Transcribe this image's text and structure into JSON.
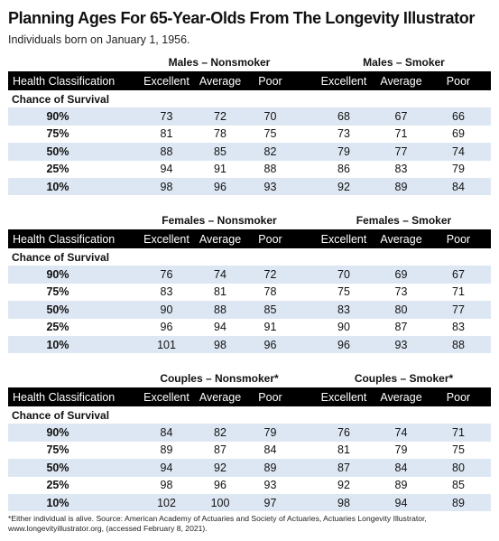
{
  "title": "Planning Ages For 65-Year-Olds From The Longevity Illustrator",
  "subtitle": "Individuals born on January 1, 1956.",
  "chart_data": {
    "type": "table",
    "header_label": "Health Classification",
    "row_group_label": "Chance of Survival",
    "columns": [
      "Excellent",
      "Average",
      "Poor"
    ],
    "sections": [
      {
        "left_title": "Males – Nonsmoker",
        "right_title": "Males – Smoker",
        "rows": [
          {
            "label": "90%",
            "left": [
              "73",
              "72",
              "70"
            ],
            "right": [
              "68",
              "67",
              "66"
            ]
          },
          {
            "label": "75%",
            "left": [
              "81",
              "78",
              "75"
            ],
            "right": [
              "73",
              "71",
              "69"
            ]
          },
          {
            "label": "50%",
            "left": [
              "88",
              "85",
              "82"
            ],
            "right": [
              "79",
              "77",
              "74"
            ]
          },
          {
            "label": "25%",
            "left": [
              "94",
              "91",
              "88"
            ],
            "right": [
              "86",
              "83",
              "79"
            ]
          },
          {
            "label": "10%",
            "left": [
              "98",
              "96",
              "93"
            ],
            "right": [
              "92",
              "89",
              "84"
            ]
          }
        ]
      },
      {
        "left_title": "Females – Nonsmoker",
        "right_title": "Females – Smoker",
        "rows": [
          {
            "label": "90%",
            "left": [
              "76",
              "74",
              "72"
            ],
            "right": [
              "70",
              "69",
              "67"
            ]
          },
          {
            "label": "75%",
            "left": [
              "83",
              "81",
              "78"
            ],
            "right": [
              "75",
              "73",
              "71"
            ]
          },
          {
            "label": "50%",
            "left": [
              "90",
              "88",
              "85"
            ],
            "right": [
              "83",
              "80",
              "77"
            ]
          },
          {
            "label": "25%",
            "left": [
              "96",
              "94",
              "91"
            ],
            "right": [
              "90",
              "87",
              "83"
            ]
          },
          {
            "label": "10%",
            "left": [
              "101",
              "98",
              "96"
            ],
            "right": [
              "96",
              "93",
              "88"
            ]
          }
        ]
      },
      {
        "left_title": "Couples – Nonsmoker*",
        "right_title": "Couples – Smoker*",
        "rows": [
          {
            "label": "90%",
            "left": [
              "84",
              "82",
              "79"
            ],
            "right": [
              "76",
              "74",
              "71"
            ]
          },
          {
            "label": "75%",
            "left": [
              "89",
              "87",
              "84"
            ],
            "right": [
              "81",
              "79",
              "75"
            ]
          },
          {
            "label": "50%",
            "left": [
              "94",
              "92",
              "89"
            ],
            "right": [
              "87",
              "84",
              "80"
            ]
          },
          {
            "label": "25%",
            "left": [
              "98",
              "96",
              "93"
            ],
            "right": [
              "92",
              "89",
              "85"
            ]
          },
          {
            "label": "10%",
            "left": [
              "102",
              "100",
              "97"
            ],
            "right": [
              "98",
              "94",
              "89"
            ]
          }
        ]
      }
    ],
    "colors": {
      "header_bg": "#000000",
      "header_text": "#ffffff",
      "stripe": "#dde7f3"
    }
  },
  "footnote": "*Either individual is alive. Source: American Academy of Actuaries and Society of Actuaries, Actuaries Longevity Illustrator, www.longevityillustrator.org, (accessed February 8, 2021)."
}
